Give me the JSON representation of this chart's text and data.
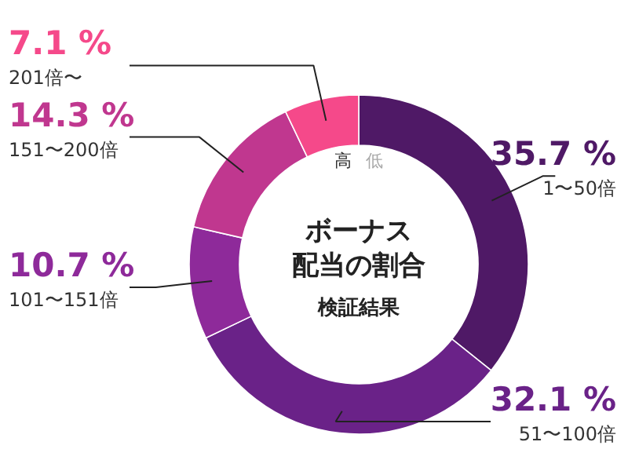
{
  "chart_data": {
    "type": "donut",
    "title": "ボーナス配当の割合",
    "subtitle": "検証結果",
    "categories": [
      "1〜50倍",
      "51〜100倍",
      "101〜151倍",
      "151〜200倍",
      "201倍〜"
    ],
    "values": [
      35.7,
      32.1,
      10.7,
      14.3,
      7.1
    ],
    "colors": [
      "#4f1966",
      "#6a2288",
      "#8e2a9a",
      "#c0378f",
      "#f5498a"
    ],
    "value_labels": [
      "35.7 %",
      "32.1 %",
      "10.7 %",
      "14.3 %",
      "7.1 %"
    ],
    "annotations": [
      "高",
      "低"
    ]
  }
}
